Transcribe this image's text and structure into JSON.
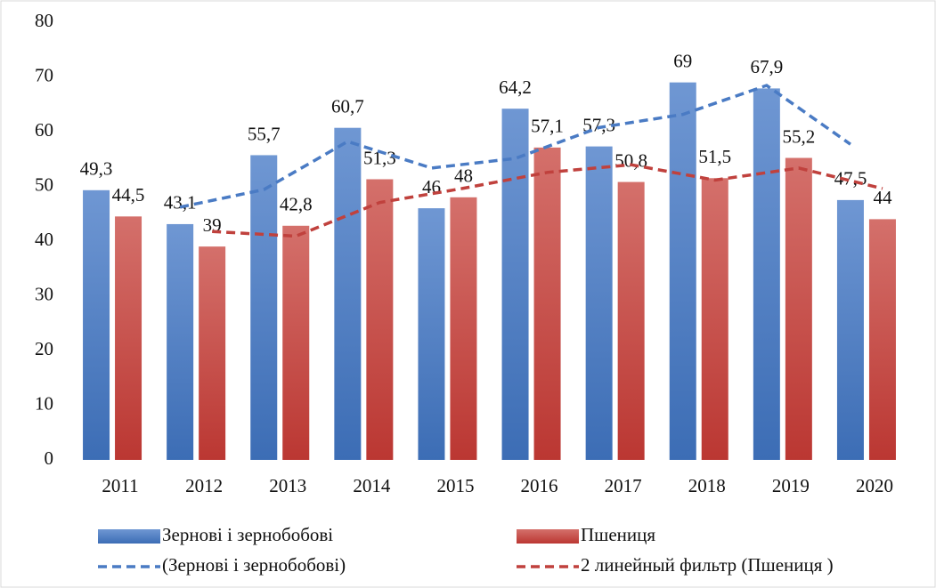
{
  "chart_data": {
    "type": "bar",
    "categories": [
      "2011",
      "2012",
      "2013",
      "2014",
      "2015",
      "2016",
      "2017",
      "2018",
      "2019",
      "2020"
    ],
    "series": [
      {
        "name": "Зернові і зернобобові",
        "color": "#4a7bc4",
        "type": "bar",
        "values": [
          49.3,
          43.1,
          55.7,
          60.7,
          46,
          64.2,
          57.3,
          69,
          67.9,
          47.5
        ],
        "value_labels": [
          "49,3",
          "43,1",
          "55,7",
          "60,7",
          "46",
          "64,2",
          "57,3",
          "69",
          "67,9",
          "47,5"
        ]
      },
      {
        "name": "Пшениця",
        "color": "#c9443f",
        "type": "bar",
        "values": [
          44.5,
          39,
          42.8,
          51.3,
          48,
          57.1,
          50.8,
          51.5,
          55.2,
          44
        ],
        "value_labels": [
          "44,5",
          "39",
          "42,8",
          "51,3",
          "48",
          "57,1",
          "50,8",
          "51,5",
          "55,2",
          "44"
        ]
      },
      {
        "name": "(Зернові і зернобобові)",
        "color": "#4a7bc4",
        "type": "line",
        "dash": true,
        "values": [
          null,
          46.2,
          49.4,
          58.2,
          53.35,
          55.1,
          60.75,
          63.15,
          68.45,
          57.7
        ]
      },
      {
        "name": "2 линейный фильтр (Пшениця  )",
        "color": "#c0413d",
        "type": "line",
        "dash": true,
        "values": [
          null,
          41.75,
          40.9,
          47.05,
          49.65,
          52.55,
          53.95,
          51.15,
          53.35,
          49.6
        ]
      }
    ],
    "ylim": [
      0,
      80
    ],
    "yticks": [
      0,
      10,
      20,
      30,
      40,
      50,
      60,
      70,
      80
    ],
    "grid": false,
    "legend": "bottom"
  }
}
